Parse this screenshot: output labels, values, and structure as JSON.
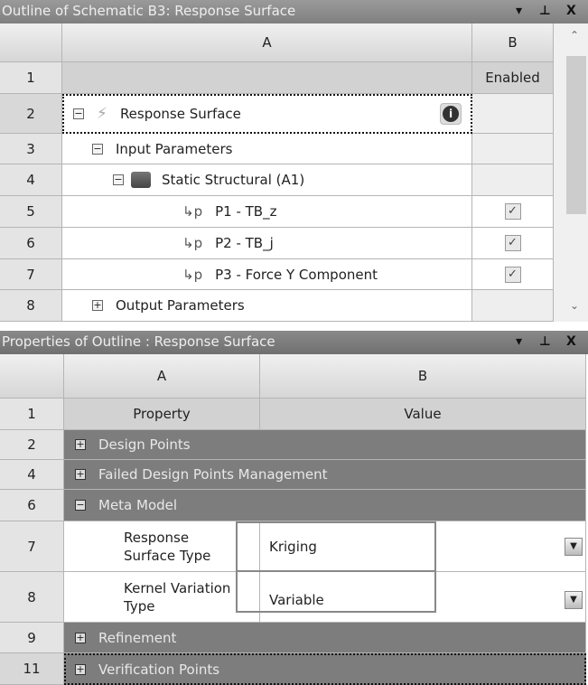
{
  "outline": {
    "title": "Outline of Schematic B3: Response Surface",
    "controls": {
      "dropdown": "▾",
      "pin": "⊥",
      "close": "X"
    },
    "col_headers": [
      "A",
      "B"
    ],
    "rows": [
      {
        "num": "1",
        "label": "",
        "b": "Enabled"
      },
      {
        "num": "2",
        "label": "Response Surface",
        "toggle": "−"
      },
      {
        "num": "3",
        "label": "Input Parameters",
        "toggle": "−"
      },
      {
        "num": "4",
        "label": "Static Structural (A1)",
        "toggle": "−"
      },
      {
        "num": "5",
        "label": "P1 - TB_z",
        "checked": true
      },
      {
        "num": "6",
        "label": "P2 - TB_j",
        "checked": true
      },
      {
        "num": "7",
        "label": "P3 - Force Y Component",
        "checked": true
      },
      {
        "num": "8",
        "label": "Output Parameters",
        "toggle": "+"
      }
    ]
  },
  "properties": {
    "title": "Properties of Outline : Response Surface",
    "col_headers": [
      "A",
      "B"
    ],
    "header_row": {
      "num": "1",
      "a": "Property",
      "b": "Value"
    },
    "rows": [
      {
        "num": "2",
        "label": "Design Points",
        "toggle": "+"
      },
      {
        "num": "4",
        "label": "Failed Design Points Management",
        "toggle": "+"
      },
      {
        "num": "6",
        "label": "Meta Model",
        "toggle": "−"
      },
      {
        "num": "7",
        "label1": "Response",
        "label2": "Surface Type",
        "value": "Kriging"
      },
      {
        "num": "8",
        "label1": "Kernel Variation",
        "label2": "Type",
        "value": "Variable"
      },
      {
        "num": "9",
        "label": "Refinement",
        "toggle": "+"
      },
      {
        "num": "11",
        "label": "Verification Points",
        "toggle": "+"
      }
    ]
  },
  "icons": {
    "param": "↳p",
    "check": "✓",
    "info": "i",
    "dropdown": "▼"
  }
}
